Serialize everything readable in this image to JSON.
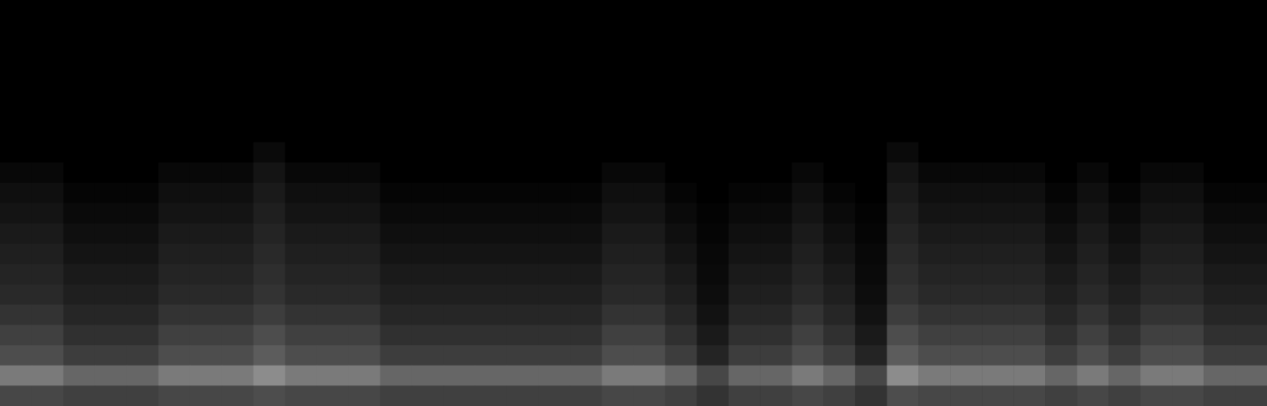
{
  "chart_data": {
    "type": "heatmap",
    "tick_labels": false,
    "zlim": [
      0,
      100
    ],
    "cells": [
      [
        0,
        0,
        0,
        0,
        0,
        0,
        0,
        0,
        0,
        0,
        0,
        0,
        0,
        0,
        0,
        0,
        0,
        0,
        0,
        0,
        0,
        0,
        0,
        0,
        0,
        0,
        0,
        0,
        0,
        0,
        0,
        0,
        0,
        0,
        0,
        0,
        0,
        0,
        0,
        0
      ],
      [
        0,
        0,
        0,
        0,
        0,
        0,
        0,
        0,
        0,
        0,
        0,
        0,
        0,
        0,
        0,
        0,
        0,
        0,
        0,
        0,
        0,
        0,
        0,
        0,
        0,
        0,
        0,
        0,
        0,
        0,
        0,
        0,
        0,
        0,
        0,
        0,
        0,
        0,
        0,
        0
      ],
      [
        0,
        0,
        0,
        0,
        0,
        0,
        0,
        0,
        0,
        0,
        0,
        0,
        0,
        0,
        0,
        0,
        0,
        0,
        0,
        0,
        0,
        0,
        0,
        0,
        0,
        0,
        0,
        0,
        0,
        0,
        0,
        0,
        0,
        0,
        0,
        0,
        0,
        0,
        0,
        0
      ],
      [
        0,
        0,
        0,
        0,
        0,
        0,
        0,
        0,
        0,
        0,
        0,
        0,
        0,
        0,
        0,
        0,
        0,
        0,
        0,
        0,
        0,
        0,
        0,
        0,
        0,
        0,
        0,
        0,
        0,
        0,
        0,
        0,
        0,
        0,
        0,
        0,
        0,
        0,
        0,
        0
      ],
      [
        0,
        0,
        0,
        0,
        0,
        0,
        0,
        0,
        0,
        0,
        0,
        0,
        0,
        0,
        0,
        0,
        0,
        0,
        0,
        0,
        0,
        0,
        0,
        0,
        0,
        0,
        0,
        0,
        0,
        0,
        0,
        0,
        0,
        0,
        0,
        0,
        0,
        0,
        0,
        0
      ],
      [
        0,
        0,
        0,
        0,
        0,
        0,
        0,
        0,
        0,
        0,
        0,
        0,
        0,
        0,
        0,
        0,
        0,
        0,
        0,
        0,
        0,
        0,
        0,
        0,
        0,
        0,
        0,
        0,
        0,
        0,
        0,
        0,
        0,
        0,
        0,
        0,
        0,
        0,
        0,
        0
      ],
      [
        0,
        0,
        0,
        0,
        0,
        0,
        0,
        0,
        0,
        0,
        0,
        0,
        0,
        0,
        0,
        0,
        0,
        0,
        0,
        0,
        0,
        0,
        0,
        0,
        0,
        0,
        0,
        0,
        0,
        0,
        0,
        0,
        0,
        0,
        0,
        0,
        0,
        0,
        0,
        0
      ],
      [
        0,
        0,
        0,
        0,
        0,
        0,
        0,
        0,
        4,
        0,
        0,
        0,
        0,
        0,
        0,
        0,
        0,
        0,
        0,
        0,
        0,
        0,
        0,
        0,
        0,
        0,
        0,
        0,
        4,
        0,
        0,
        0,
        0,
        0,
        0,
        0,
        0,
        0,
        0,
        0
      ],
      [
        3,
        3,
        0,
        0,
        0,
        3,
        3,
        3,
        8,
        3,
        3,
        3,
        0,
        0,
        0,
        0,
        0,
        0,
        0,
        3,
        3,
        0,
        0,
        0,
        0,
        3,
        0,
        0,
        8,
        3,
        3,
        3,
        3,
        0,
        3,
        0,
        3,
        3,
        0,
        0
      ],
      [
        6,
        6,
        2,
        2,
        2,
        6,
        6,
        6,
        10,
        6,
        6,
        6,
        2,
        2,
        2,
        2,
        2,
        2,
        2,
        6,
        6,
        2,
        0,
        2,
        2,
        6,
        2,
        0,
        10,
        6,
        6,
        6,
        6,
        2,
        6,
        2,
        6,
        6,
        2,
        2
      ],
      [
        8,
        8,
        4,
        4,
        4,
        8,
        8,
        8,
        12,
        8,
        8,
        8,
        4,
        4,
        4,
        4,
        4,
        4,
        4,
        8,
        8,
        4,
        1,
        4,
        4,
        8,
        4,
        1,
        12,
        8,
        8,
        8,
        8,
        4,
        8,
        4,
        8,
        8,
        4,
        4
      ],
      [
        10,
        10,
        6,
        6,
        6,
        10,
        10,
        10,
        14,
        10,
        10,
        10,
        6,
        6,
        6,
        6,
        6,
        6,
        6,
        10,
        10,
        6,
        2,
        6,
        6,
        10,
        6,
        2,
        14,
        10,
        10,
        10,
        10,
        6,
        10,
        6,
        10,
        10,
        6,
        6
      ],
      [
        12,
        12,
        8,
        8,
        8,
        12,
        12,
        12,
        16,
        12,
        12,
        12,
        8,
        8,
        8,
        8,
        8,
        8,
        8,
        12,
        12,
        8,
        3,
        8,
        8,
        12,
        8,
        3,
        16,
        12,
        12,
        12,
        12,
        8,
        12,
        8,
        12,
        12,
        8,
        8
      ],
      [
        14,
        14,
        10,
        10,
        10,
        14,
        14,
        14,
        18,
        14,
        14,
        14,
        10,
        10,
        10,
        10,
        10,
        10,
        10,
        14,
        14,
        10,
        4,
        10,
        10,
        14,
        10,
        4,
        18,
        14,
        14,
        14,
        14,
        10,
        14,
        10,
        14,
        14,
        10,
        10
      ],
      [
        16,
        16,
        12,
        12,
        12,
        16,
        16,
        16,
        20,
        16,
        16,
        16,
        12,
        12,
        12,
        12,
        12,
        12,
        12,
        16,
        16,
        12,
        5,
        12,
        12,
        16,
        12,
        5,
        20,
        16,
        16,
        16,
        16,
        12,
        16,
        12,
        16,
        16,
        12,
        12
      ],
      [
        20,
        20,
        15,
        15,
        15,
        20,
        20,
        20,
        24,
        20,
        20,
        20,
        15,
        15,
        15,
        15,
        15,
        15,
        15,
        20,
        20,
        15,
        7,
        15,
        15,
        20,
        15,
        7,
        24,
        20,
        20,
        20,
        20,
        15,
        20,
        15,
        20,
        20,
        15,
        15
      ],
      [
        25,
        25,
        19,
        19,
        19,
        25,
        25,
        25,
        30,
        25,
        25,
        25,
        19,
        19,
        19,
        19,
        19,
        19,
        19,
        25,
        25,
        19,
        10,
        19,
        19,
        25,
        19,
        10,
        30,
        25,
        25,
        25,
        25,
        19,
        25,
        19,
        25,
        25,
        19,
        19
      ],
      [
        30,
        30,
        24,
        24,
        24,
        30,
        30,
        30,
        36,
        30,
        30,
        30,
        24,
        24,
        24,
        24,
        24,
        24,
        24,
        30,
        30,
        24,
        14,
        24,
        24,
        30,
        24,
        14,
        36,
        30,
        30,
        30,
        30,
        24,
        30,
        24,
        30,
        30,
        24,
        24
      ],
      [
        48,
        48,
        40,
        40,
        40,
        48,
        48,
        48,
        55,
        48,
        48,
        48,
        40,
        40,
        40,
        40,
        40,
        40,
        40,
        48,
        48,
        40,
        28,
        40,
        40,
        48,
        40,
        28,
        55,
        48,
        48,
        48,
        48,
        40,
        48,
        40,
        48,
        48,
        40,
        40
      ],
      [
        28,
        28,
        25,
        25,
        25,
        28,
        28,
        28,
        30,
        28,
        28,
        28,
        25,
        25,
        25,
        25,
        25,
        25,
        25,
        28,
        28,
        25,
        20,
        25,
        25,
        28,
        25,
        20,
        30,
        28,
        28,
        28,
        28,
        25,
        28,
        25,
        28,
        28,
        25,
        25
      ]
    ]
  }
}
